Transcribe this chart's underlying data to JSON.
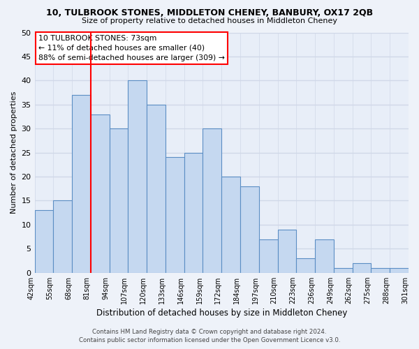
{
  "title": "10, TULBROOK STONES, MIDDLETON CHENEY, BANBURY, OX17 2QB",
  "subtitle": "Size of property relative to detached houses in Middleton Cheney",
  "xlabel": "Distribution of detached houses by size in Middleton Cheney",
  "ylabel": "Number of detached properties",
  "bin_labels": [
    "42sqm",
    "55sqm",
    "68sqm",
    "81sqm",
    "94sqm",
    "107sqm",
    "120sqm",
    "133sqm",
    "146sqm",
    "159sqm",
    "172sqm",
    "184sqm",
    "197sqm",
    "210sqm",
    "223sqm",
    "236sqm",
    "249sqm",
    "262sqm",
    "275sqm",
    "288sqm",
    "301sqm"
  ],
  "bin_values": [
    13,
    15,
    37,
    33,
    30,
    40,
    35,
    24,
    25,
    30,
    20,
    18,
    7,
    9,
    3,
    7,
    1,
    2,
    1,
    1
  ],
  "bar_color": "#c5d8f0",
  "bar_edge_color": "#5b8ec4",
  "ylim": [
    0,
    50
  ],
  "yticks": [
    0,
    5,
    10,
    15,
    20,
    25,
    30,
    35,
    40,
    45,
    50
  ],
  "red_line_index": 3,
  "annotation_title": "10 TULBROOK STONES: 73sqm",
  "annotation_line1": "← 11% of detached houses are smaller (40)",
  "annotation_line2": "88% of semi-detached houses are larger (309) →",
  "footer1": "Contains HM Land Registry data © Crown copyright and database right 2024.",
  "footer2": "Contains public sector information licensed under the Open Government Licence v3.0.",
  "bg_color": "#eef2f9",
  "plot_bg_color": "#e8eef8",
  "grid_color": "#d0d8e8"
}
